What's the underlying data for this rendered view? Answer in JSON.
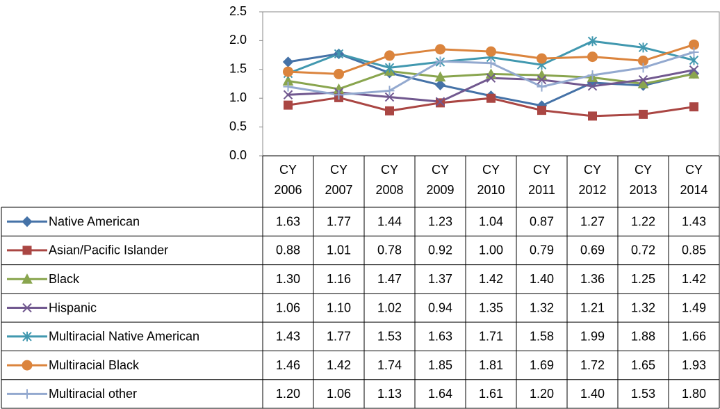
{
  "chart_data": {
    "type": "line",
    "categories": [
      "CY 2006",
      "CY 2007",
      "CY 2008",
      "CY 2009",
      "CY 2010",
      "CY 2011",
      "CY 2012",
      "CY 2013",
      "CY 2014"
    ],
    "ylim": [
      0,
      2.5
    ],
    "yticks": [
      {
        "value": 0,
        "label": "0.0"
      },
      0.5,
      {
        "value": 1,
        "label": "1.0"
      },
      1.5,
      {
        "value": 2,
        "label": "2.0"
      },
      2.5
    ],
    "series": [
      {
        "name": "Native American",
        "color": "#4572a7",
        "marker": "diamond",
        "values": [
          1.63,
          1.77,
          1.44,
          1.23,
          1.04,
          0.87,
          1.27,
          1.22,
          1.43
        ],
        "value_labels": [
          "1.63",
          "1.77",
          "1.44",
          "1.23",
          "1.04",
          "0.87",
          "1.27",
          "1.22",
          "1.43"
        ]
      },
      {
        "name": "Asian/Pacific Islander",
        "color": "#aa4643",
        "marker": "square",
        "values": [
          0.88,
          1.01,
          0.78,
          0.92,
          1.0,
          0.79,
          0.69,
          0.72,
          0.85
        ],
        "value_labels": [
          "0.88",
          "1.01",
          "0.78",
          "0.92",
          "1.00",
          "0.79",
          "0.69",
          "0.72",
          "0.85"
        ]
      },
      {
        "name": "Black",
        "color": "#89a54e",
        "marker": "triangle",
        "values": [
          1.3,
          1.16,
          1.47,
          1.37,
          1.42,
          1.4,
          1.36,
          1.25,
          1.42
        ],
        "value_labels": [
          "1.30",
          "1.16",
          "1.47",
          "1.37",
          "1.42",
          "1.40",
          "1.36",
          "1.25",
          "1.42"
        ]
      },
      {
        "name": "Hispanic",
        "color": "#71588f",
        "marker": "x",
        "values": [
          1.06,
          1.1,
          1.02,
          0.94,
          1.35,
          1.32,
          1.21,
          1.32,
          1.49
        ],
        "value_labels": [
          "1.06",
          "1.10",
          "1.02",
          "0.94",
          "1.35",
          "1.32",
          "1.21",
          "1.32",
          "1.49"
        ]
      },
      {
        "name": "Multiracial Native American",
        "color": "#4198af",
        "marker": "star",
        "values": [
          1.43,
          1.77,
          1.53,
          1.63,
          1.71,
          1.58,
          1.99,
          1.88,
          1.66
        ],
        "value_labels": [
          "1.43",
          "1.77",
          "1.53",
          "1.63",
          "1.71",
          "1.58",
          "1.99",
          "1.88",
          "1.66"
        ]
      },
      {
        "name": "Multiracial Black",
        "color": "#db843d",
        "marker": "circle",
        "values": [
          1.46,
          1.42,
          1.74,
          1.85,
          1.81,
          1.69,
          1.72,
          1.65,
          1.93
        ],
        "value_labels": [
          "1.46",
          "1.42",
          "1.74",
          "1.85",
          "1.81",
          "1.69",
          "1.72",
          "1.65",
          "1.93"
        ]
      },
      {
        "name": "Multiracial other",
        "color": "#93a9cf",
        "marker": "plus",
        "values": [
          1.2,
          1.06,
          1.13,
          1.64,
          1.61,
          1.2,
          1.4,
          1.53,
          1.8
        ],
        "value_labels": [
          "1.20",
          "1.06",
          "1.13",
          "1.64",
          "1.61",
          "1.20",
          "1.40",
          "1.53",
          "1.80"
        ]
      }
    ]
  }
}
